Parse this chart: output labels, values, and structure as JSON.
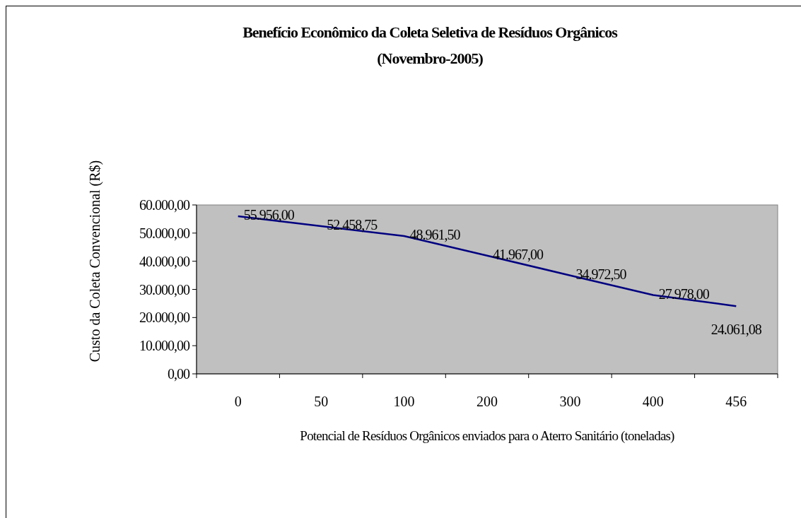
{
  "chart_data": {
    "type": "line",
    "title": "Benefício Econômico da Coleta Seletiva de Resíduos Orgânicos",
    "subtitle": "(Novembro-2005)",
    "xlabel": "Potencial de Resíduos Orgânicos enviados para o Aterro Sanitário (toneladas)",
    "ylabel": "Custo da Coleta Convencional (R$)",
    "categories": [
      "0",
      "50",
      "100",
      "200",
      "300",
      "400",
      "456"
    ],
    "series": [
      {
        "color": "#000080",
        "values": [
          55956,
          52458.75,
          48961.5,
          41967,
          34972.5,
          27978,
          24061.08
        ],
        "value_labels": [
          "55.956,00",
          "52.458,75",
          "48.961,50",
          "41.967,00",
          "34.972,50",
          "27.978,00",
          "24.061,08"
        ]
      }
    ],
    "ylim": [
      0,
      60000
    ],
    "yticks": [
      {
        "value": 0,
        "label": "0,00"
      },
      {
        "value": 10000,
        "label": "10.000,00"
      },
      {
        "value": 20000,
        "label": "20.000,00"
      },
      {
        "value": 30000,
        "label": "30.000,00"
      },
      {
        "value": 40000,
        "label": "40.000,00"
      },
      {
        "value": 50000,
        "label": "50.000,00"
      },
      {
        "value": 60000,
        "label": "60.000,00"
      }
    ],
    "grid": false,
    "marker": "none",
    "line_style": "solid"
  }
}
